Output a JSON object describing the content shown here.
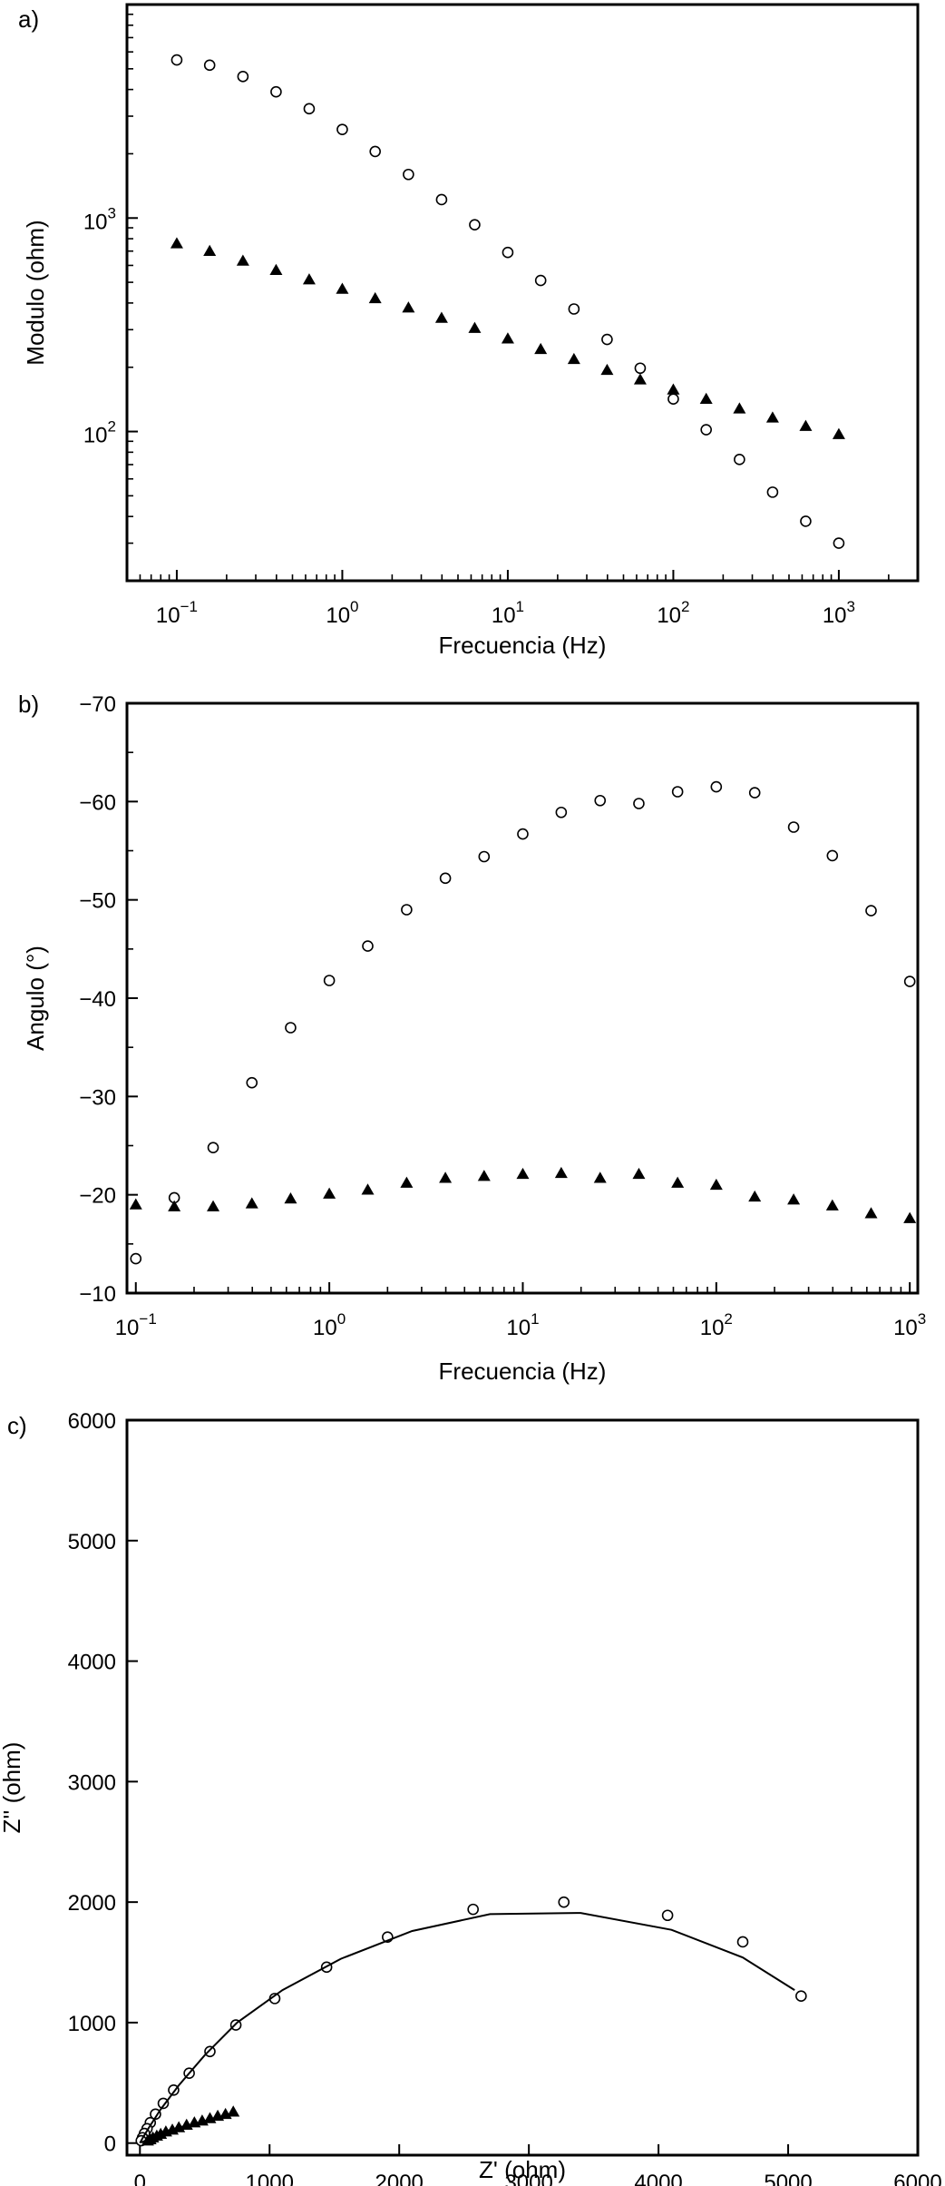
{
  "chart_data": [
    {
      "id": "a",
      "panel_label": "a)",
      "type": "scatter",
      "xscale": "log",
      "yscale": "log",
      "xlabel": "Frecuencia (Hz)",
      "ylabel": "Modulo (ohm)",
      "xlim": [
        0.05,
        3000
      ],
      "ylim": [
        20,
        10000
      ],
      "xticks": [
        0.1,
        1,
        10,
        100,
        1000
      ],
      "xtick_labels": [
        {
          "base": "10",
          "exp": "−1"
        },
        {
          "base": "10",
          "exp": "0"
        },
        {
          "base": "10",
          "exp": "1"
        },
        {
          "base": "10",
          "exp": "2"
        },
        {
          "base": "10",
          "exp": "3"
        }
      ],
      "yticks": [
        100,
        1000
      ],
      "ytick_labels": [
        {
          "base": "10",
          "exp": "2"
        },
        {
          "base": "10",
          "exp": "3"
        }
      ],
      "grid": false,
      "series": [
        {
          "marker": "open-circle",
          "x": [
            0.1,
            0.158,
            0.251,
            0.398,
            0.631,
            1,
            1.58,
            2.51,
            3.98,
            6.31,
            10,
            15.8,
            25.1,
            39.8,
            63.1,
            100,
            158,
            251,
            398,
            631,
            1000
          ],
          "y": [
            5500,
            5200,
            4600,
            3900,
            3250,
            2600,
            2050,
            1600,
            1220,
            930,
            690,
            510,
            375,
            270,
            198,
            142,
            102,
            74,
            52,
            38,
            30
          ]
        },
        {
          "marker": "filled-triangle",
          "x": [
            0.1,
            0.158,
            0.251,
            0.398,
            0.631,
            1,
            1.58,
            2.51,
            3.98,
            6.31,
            10,
            15.8,
            25.1,
            39.8,
            63.1,
            100,
            158,
            251,
            398,
            631,
            1000
          ],
          "y": [
            760,
            700,
            630,
            570,
            515,
            465,
            420,
            380,
            340,
            305,
            272,
            243,
            218,
            194,
            175,
            157,
            142,
            128,
            116,
            106,
            97
          ]
        }
      ]
    },
    {
      "id": "b",
      "panel_label": "b)",
      "type": "scatter",
      "xscale": "log",
      "yscale": "linear",
      "xlabel": "Frecuencia (Hz)",
      "ylabel": "Angulo (°)",
      "xlim": [
        0.09,
        1100
      ],
      "ylim": [
        -10,
        -70
      ],
      "xticks": [
        0.1,
        1,
        10,
        100,
        1000
      ],
      "xtick_labels": [
        {
          "base": "10",
          "exp": "−1"
        },
        {
          "base": "10",
          "exp": "0"
        },
        {
          "base": "10",
          "exp": "1"
        },
        {
          "base": "10",
          "exp": "2"
        },
        {
          "base": "10",
          "exp": "3"
        }
      ],
      "yticks": [
        -10,
        -20,
        -30,
        -40,
        -50,
        -60,
        -70
      ],
      "ytick_labels": [
        "−10",
        "−20",
        "−30",
        "−40",
        "−50",
        "−60",
        "−70"
      ],
      "grid": false,
      "series": [
        {
          "marker": "open-circle",
          "x": [
            0.1,
            0.158,
            0.251,
            0.398,
            0.631,
            1,
            1.58,
            2.51,
            3.98,
            6.31,
            10,
            15.8,
            25.1,
            39.8,
            63.1,
            100,
            158,
            251,
            398,
            631,
            1000
          ],
          "y": [
            -13.5,
            -19.7,
            -24.8,
            -31.4,
            -37,
            -41.8,
            -45.3,
            -49,
            -52.2,
            -54.4,
            -56.7,
            -58.9,
            -60.1,
            -59.8,
            -61,
            -61.5,
            -60.9,
            -57.4,
            -54.5,
            -48.9,
            -41.7
          ]
        },
        {
          "marker": "filled-triangle",
          "x": [
            0.1,
            0.158,
            0.251,
            0.398,
            0.631,
            1,
            1.58,
            2.51,
            3.98,
            6.31,
            10,
            15.8,
            25.1,
            39.8,
            63.1,
            100,
            158,
            251,
            398,
            631,
            1000
          ],
          "y": [
            -19,
            -18.8,
            -18.8,
            -19.1,
            -19.6,
            -20.1,
            -20.5,
            -21.2,
            -21.7,
            -21.9,
            -22.1,
            -22.2,
            -21.7,
            -22.1,
            -21.2,
            -21,
            -19.8,
            -19.5,
            -18.9,
            -18.1,
            -17.6
          ]
        }
      ]
    },
    {
      "id": "c",
      "panel_label": "c)",
      "type": "scatter",
      "xscale": "linear",
      "yscale": "linear",
      "xlabel": "Z' (ohm)",
      "ylabel": "Z'' (ohm)",
      "xlim": [
        -100,
        6000
      ],
      "ylim": [
        -100,
        6000
      ],
      "xticks": [
        0,
        1000,
        2000,
        3000,
        4000,
        5000,
        6000
      ],
      "xtick_labels": [
        "0",
        "1000",
        "2000",
        "3000",
        "4000",
        "5000",
        "6000"
      ],
      "yticks": [
        0,
        1000,
        2000,
        3000,
        4000,
        5000,
        6000
      ],
      "ytick_labels": [
        "0",
        "1000",
        "2000",
        "3000",
        "4000",
        "5000",
        "6000"
      ],
      "grid": false,
      "series": [
        {
          "marker": "open-circle",
          "x": [
            5100,
            4650,
            4070,
            3270,
            2570,
            1910,
            1440,
            1040,
            740,
            540,
            380,
            260,
            180,
            120,
            80,
            55,
            35,
            20,
            10
          ],
          "y": [
            1220,
            1670,
            1890,
            2000,
            1940,
            1710,
            1460,
            1200,
            980,
            760,
            580,
            440,
            330,
            240,
            170,
            120,
            80,
            45,
            20
          ]
        },
        {
          "marker": "filled-triangle",
          "x": [
            720,
            660,
            600,
            540,
            480,
            420,
            360,
            300,
            250,
            200,
            160,
            130,
            100,
            80,
            60
          ],
          "y": [
            260,
            240,
            225,
            205,
            185,
            170,
            150,
            130,
            110,
            95,
            75,
            60,
            45,
            30,
            20
          ]
        },
        {
          "marker": "line",
          "x": [
            5050,
            4650,
            4100,
            3400,
            2700,
            2100,
            1550,
            1100,
            750,
            500,
            300,
            160,
            70,
            20,
            0
          ],
          "y": [
            1270,
            1540,
            1770,
            1910,
            1900,
            1760,
            1530,
            1270,
            1000,
            730,
            480,
            280,
            130,
            40,
            0
          ]
        },
        {
          "marker": "line",
          "x": [
            680,
            560,
            440,
            320,
            220,
            140,
            80,
            40,
            10
          ],
          "y": [
            215,
            190,
            165,
            135,
            105,
            75,
            45,
            20,
            5
          ]
        }
      ]
    }
  ]
}
